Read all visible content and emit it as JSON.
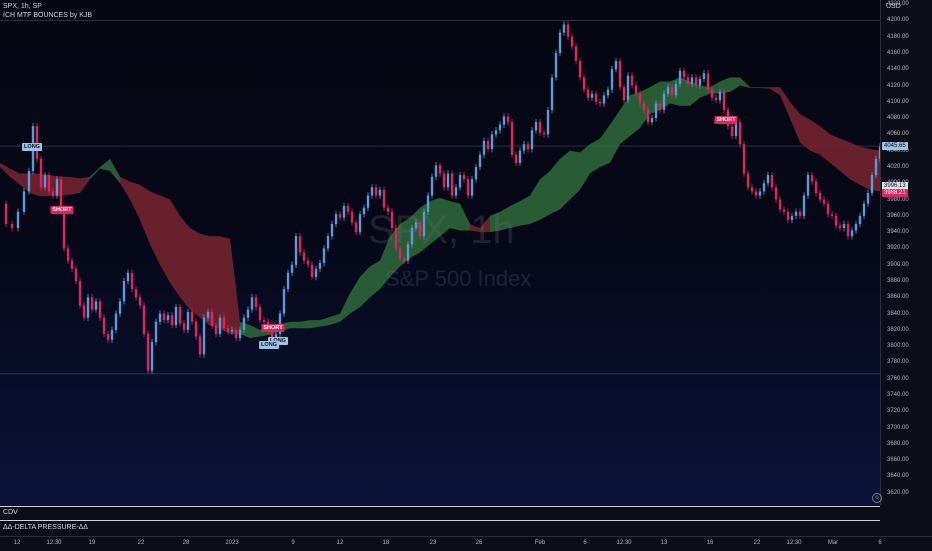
{
  "header": {
    "symbol": "SPX, 1h, SP",
    "indicator": "ICH MTF BOUNCES by KJB",
    "currency": "USD"
  },
  "watermark": {
    "ticker": "SPX, 1h",
    "name": "S&P 500 Index"
  },
  "panes": {
    "cdv": "CDV",
    "delta": "ΔΔ-DELTA PRESSURE-ΔΔ"
  },
  "colors": {
    "up_candle": "#5b9bd5",
    "down_candle": "#e0245e",
    "cloud_bull": "#2e6b3a",
    "cloud_bear": "#7a2530",
    "price_tag": "#5b9bd5",
    "bear_tag": "#e0245e"
  },
  "price_tags": [
    {
      "value": "4045.65",
      "price": 4045.65,
      "color": "#9cc3e6",
      "text": "#0b0e19"
    },
    {
      "value": "3996.13",
      "price": 3996.13,
      "color": "#dde4ee",
      "text": "#0b0e19"
    },
    {
      "value": "3988.21",
      "price": 3988.21,
      "color": "#e0245e",
      "text": "#ffffff"
    }
  ],
  "signals": [
    {
      "label": "LONG",
      "type": "long",
      "x": 32,
      "price": 4044
    },
    {
      "label": "SHORT",
      "type": "short",
      "x": 62,
      "price": 3967
    },
    {
      "label": "SHORT",
      "type": "short",
      "x": 273,
      "price": 3822
    },
    {
      "label": "LONG",
      "type": "long",
      "x": 278,
      "price": 3806
    },
    {
      "label": "LONG",
      "type": "long",
      "x": 269,
      "price": 3802
    },
    {
      "label": "SHORT",
      "type": "short",
      "x": 726,
      "price": 4078
    }
  ],
  "chart_data": {
    "type": "line",
    "ylim": [
      3605,
      4225
    ],
    "y_ticks": [
      4220,
      4200,
      4180,
      4160,
      4140,
      4120,
      4100,
      4080,
      4060,
      4040,
      4020,
      4000,
      3980,
      3960,
      3940,
      3920,
      3900,
      3880,
      3860,
      3840,
      3820,
      3800,
      3780,
      3760,
      3740,
      3720,
      3700,
      3680,
      3660,
      3640,
      3620
    ],
    "x_ticks": [
      {
        "label": "12",
        "x": 17
      },
      {
        "label": "12:30",
        "x": 54
      },
      {
        "label": "19",
        "x": 92
      },
      {
        "label": "22",
        "x": 141
      },
      {
        "label": "28",
        "x": 186
      },
      {
        "label": "2023",
        "x": 232
      },
      {
        "label": "9",
        "x": 293
      },
      {
        "label": "12",
        "x": 340
      },
      {
        "label": "18",
        "x": 386
      },
      {
        "label": "23",
        "x": 433
      },
      {
        "label": "26",
        "x": 479
      },
      {
        "label": "Feb",
        "x": 540
      },
      {
        "label": "6",
        "x": 585
      },
      {
        "label": "12:30",
        "x": 624
      },
      {
        "label": "13",
        "x": 664
      },
      {
        "label": "16",
        "x": 710
      },
      {
        "label": "22",
        "x": 757
      },
      {
        "label": "12:30",
        "x": 794
      },
      {
        "label": "Mar",
        "x": 833
      },
      {
        "label": "6",
        "x": 880
      }
    ],
    "high_line": 4200,
    "low_line": 3766,
    "last_price_line": 4045.65,
    "price_path": [
      [
        0,
        3975
      ],
      [
        6,
        3950
      ],
      [
        12,
        3945
      ],
      [
        18,
        3965
      ],
      [
        24,
        3990
      ],
      [
        29,
        4015
      ],
      [
        33,
        4070
      ],
      [
        37,
        4030
      ],
      [
        41,
        3995
      ],
      [
        45,
        4010
      ],
      [
        49,
        3990
      ],
      [
        53,
        3985
      ],
      [
        57,
        4005
      ],
      [
        61,
        3970
      ],
      [
        64,
        3920
      ],
      [
        68,
        3905
      ],
      [
        72,
        3895
      ],
      [
        76,
        3880
      ],
      [
        80,
        3850
      ],
      [
        84,
        3835
      ],
      [
        88,
        3860
      ],
      [
        92,
        3845
      ],
      [
        96,
        3855
      ],
      [
        100,
        3835
      ],
      [
        104,
        3815
      ],
      [
        108,
        3808
      ],
      [
        112,
        3820
      ],
      [
        116,
        3840
      ],
      [
        120,
        3855
      ],
      [
        124,
        3880
      ],
      [
        128,
        3890
      ],
      [
        132,
        3870
      ],
      [
        136,
        3860
      ],
      [
        140,
        3850
      ],
      [
        144,
        3815
      ],
      [
        148,
        3770
      ],
      [
        152,
        3805
      ],
      [
        156,
        3830
      ],
      [
        160,
        3840
      ],
      [
        164,
        3832
      ],
      [
        168,
        3838
      ],
      [
        172,
        3826
      ],
      [
        176,
        3848
      ],
      [
        180,
        3828
      ],
      [
        184,
        3820
      ],
      [
        188,
        3842
      ],
      [
        192,
        3830
      ],
      [
        196,
        3812
      ],
      [
        200,
        3790
      ],
      [
        204,
        3835
      ],
      [
        208,
        3842
      ],
      [
        212,
        3825
      ],
      [
        216,
        3815
      ],
      [
        220,
        3835
      ],
      [
        224,
        3822
      ],
      [
        228,
        3818
      ],
      [
        232,
        3820
      ],
      [
        236,
        3810
      ],
      [
        240,
        3820
      ],
      [
        244,
        3835
      ],
      [
        248,
        3845
      ],
      [
        252,
        3860
      ],
      [
        256,
        3848
      ],
      [
        260,
        3832
      ],
      [
        264,
        3830
      ],
      [
        268,
        3818
      ],
      [
        272,
        3805
      ],
      [
        276,
        3815
      ],
      [
        280,
        3840
      ],
      [
        284,
        3870
      ],
      [
        288,
        3890
      ],
      [
        292,
        3900
      ],
      [
        296,
        3935
      ],
      [
        300,
        3915
      ],
      [
        304,
        3905
      ],
      [
        308,
        3900
      ],
      [
        312,
        3885
      ],
      [
        316,
        3895
      ],
      [
        320,
        3902
      ],
      [
        324,
        3920
      ],
      [
        328,
        3935
      ],
      [
        332,
        3950
      ],
      [
        336,
        3962
      ],
      [
        340,
        3958
      ],
      [
        344,
        3972
      ],
      [
        348,
        3965
      ],
      [
        352,
        3952
      ],
      [
        356,
        3940
      ],
      [
        360,
        3962
      ],
      [
        364,
        3970
      ],
      [
        368,
        3985
      ],
      [
        372,
        3995
      ],
      [
        376,
        3985
      ],
      [
        380,
        3992
      ],
      [
        384,
        3970
      ],
      [
        388,
        3965
      ],
      [
        392,
        3945
      ],
      [
        396,
        3920
      ],
      [
        400,
        3908
      ],
      [
        404,
        3905
      ],
      [
        408,
        3925
      ],
      [
        412,
        3945
      ],
      [
        416,
        3952
      ],
      [
        420,
        3935
      ],
      [
        424,
        3965
      ],
      [
        428,
        3985
      ],
      [
        432,
        4008
      ],
      [
        436,
        4022
      ],
      [
        440,
        4012
      ],
      [
        444,
        3995
      ],
      [
        448,
        4012
      ],
      [
        452,
        3985
      ],
      [
        456,
        3995
      ],
      [
        460,
        4010
      ],
      [
        464,
        4005
      ],
      [
        468,
        3985
      ],
      [
        472,
        4005
      ],
      [
        476,
        4020
      ],
      [
        480,
        4035
      ],
      [
        484,
        4052
      ],
      [
        488,
        4042
      ],
      [
        492,
        4060
      ],
      [
        496,
        4065
      ],
      [
        500,
        4072
      ],
      [
        504,
        4082
      ],
      [
        508,
        4075
      ],
      [
        512,
        4035
      ],
      [
        516,
        4025
      ],
      [
        520,
        4040
      ],
      [
        524,
        4048
      ],
      [
        528,
        4042
      ],
      [
        532,
        4065
      ],
      [
        536,
        4075
      ],
      [
        540,
        4062
      ],
      [
        544,
        4060
      ],
      [
        548,
        4090
      ],
      [
        552,
        4130
      ],
      [
        556,
        4160
      ],
      [
        560,
        4185
      ],
      [
        564,
        4195
      ],
      [
        568,
        4180
      ],
      [
        572,
        4168
      ],
      [
        576,
        4150
      ],
      [
        580,
        4130
      ],
      [
        584,
        4115
      ],
      [
        588,
        4105
      ],
      [
        592,
        4110
      ],
      [
        596,
        4100
      ],
      [
        600,
        4098
      ],
      [
        604,
        4108
      ],
      [
        608,
        4115
      ],
      [
        612,
        4140
      ],
      [
        616,
        4150
      ],
      [
        620,
        4118
      ],
      [
        624,
        4102
      ],
      [
        628,
        4132
      ],
      [
        632,
        4120
      ],
      [
        636,
        4110
      ],
      [
        640,
        4098
      ],
      [
        644,
        4090
      ],
      [
        648,
        4075
      ],
      [
        652,
        4080
      ],
      [
        656,
        4098
      ],
      [
        660,
        4090
      ],
      [
        664,
        4110
      ],
      [
        668,
        4118
      ],
      [
        672,
        4108
      ],
      [
        676,
        4122
      ],
      [
        680,
        4138
      ],
      [
        684,
        4130
      ],
      [
        688,
        4122
      ],
      [
        692,
        4130
      ],
      [
        696,
        4120
      ],
      [
        700,
        4128
      ],
      [
        704,
        4135
      ],
      [
        708,
        4115
      ],
      [
        712,
        4105
      ],
      [
        716,
        4102
      ],
      [
        720,
        4112
      ],
      [
        724,
        4090
      ],
      [
        728,
        4070
      ],
      [
        732,
        4058
      ],
      [
        736,
        4075
      ],
      [
        740,
        4048
      ],
      [
        744,
        4012
      ],
      [
        748,
        3995
      ],
      [
        752,
        3990
      ],
      [
        756,
        3985
      ],
      [
        760,
        3990
      ],
      [
        764,
        4000
      ],
      [
        768,
        4010
      ],
      [
        772,
        3995
      ],
      [
        776,
        3980
      ],
      [
        780,
        3968
      ],
      [
        784,
        3965
      ],
      [
        788,
        3955
      ],
      [
        792,
        3960
      ],
      [
        796,
        3965
      ],
      [
        800,
        3960
      ],
      [
        804,
        3985
      ],
      [
        808,
        4010
      ],
      [
        812,
        4002
      ],
      [
        816,
        3988
      ],
      [
        820,
        3980
      ],
      [
        824,
        3975
      ],
      [
        828,
        3962
      ],
      [
        832,
        3960
      ],
      [
        836,
        3948
      ],
      [
        840,
        3945
      ],
      [
        844,
        3950
      ],
      [
        848,
        3935
      ],
      [
        852,
        3942
      ],
      [
        856,
        3950
      ],
      [
        860,
        3960
      ],
      [
        864,
        3975
      ],
      [
        868,
        3988
      ],
      [
        872,
        4010
      ],
      [
        876,
        4030
      ],
      [
        880,
        4045
      ]
    ],
    "cloud": [
      [
        0,
        4025,
        4020
      ],
      [
        10,
        4018,
        4008
      ],
      [
        20,
        4012,
        3998
      ],
      [
        30,
        4012,
        3988
      ],
      [
        40,
        4012,
        3984
      ],
      [
        50,
        4010,
        3984
      ],
      [
        60,
        4008,
        3984
      ],
      [
        70,
        4008,
        3986
      ],
      [
        80,
        4006,
        3988
      ],
      [
        90,
        4008,
        4005
      ],
      [
        100,
        4020,
        4018
      ],
      [
        110,
        4030,
        4015
      ],
      [
        120,
        4008,
        4000
      ],
      [
        130,
        4002,
        3980
      ],
      [
        140,
        3998,
        3955
      ],
      [
        150,
        3990,
        3925
      ],
      [
        160,
        3985,
        3900
      ],
      [
        170,
        3980,
        3878
      ],
      [
        180,
        3960,
        3860
      ],
      [
        190,
        3945,
        3845
      ],
      [
        200,
        3938,
        3835
      ],
      [
        210,
        3935,
        3825
      ],
      [
        220,
        3935,
        3822
      ],
      [
        230,
        3932,
        3815
      ],
      [
        240,
        3830,
        3815
      ],
      [
        250,
        3826,
        3810
      ],
      [
        260,
        3820,
        3812
      ],
      [
        270,
        3824,
        3814
      ],
      [
        280,
        3827,
        3818
      ],
      [
        290,
        3830,
        3822
      ],
      [
        300,
        3830,
        3822
      ],
      [
        310,
        3832,
        3822
      ],
      [
        320,
        3832,
        3824
      ],
      [
        330,
        3836,
        3826
      ],
      [
        340,
        3840,
        3830
      ],
      [
        350,
        3865,
        3840
      ],
      [
        360,
        3885,
        3848
      ],
      [
        370,
        3898,
        3860
      ],
      [
        380,
        3905,
        3870
      ],
      [
        390,
        3935,
        3885
      ],
      [
        400,
        3950,
        3898
      ],
      [
        410,
        3958,
        3908
      ],
      [
        420,
        3970,
        3915
      ],
      [
        430,
        3978,
        3925
      ],
      [
        440,
        3982,
        3935
      ],
      [
        450,
        3978,
        3945
      ],
      [
        460,
        3975,
        3942
      ],
      [
        470,
        3950,
        3942
      ],
      [
        480,
        3945,
        3940
      ],
      [
        490,
        3960,
        3940
      ],
      [
        500,
        3965,
        3942
      ],
      [
        510,
        3972,
        3945
      ],
      [
        520,
        3978,
        3948
      ],
      [
        530,
        3985,
        3950
      ],
      [
        540,
        4005,
        3955
      ],
      [
        550,
        4015,
        3962
      ],
      [
        560,
        4030,
        3968
      ],
      [
        570,
        4040,
        3980
      ],
      [
        580,
        4038,
        3992
      ],
      [
        590,
        4048,
        4012
      ],
      [
        600,
        4055,
        4020
      ],
      [
        610,
        4072,
        4025
      ],
      [
        620,
        4090,
        4048
      ],
      [
        630,
        4108,
        4058
      ],
      [
        640,
        4112,
        4068
      ],
      [
        650,
        4118,
        4085
      ],
      [
        660,
        4125,
        4090
      ],
      [
        670,
        4125,
        4098
      ],
      [
        680,
        4130,
        4095
      ],
      [
        690,
        4125,
        4095
      ],
      [
        700,
        4120,
        4105
      ],
      [
        710,
        4118,
        4110
      ],
      [
        720,
        4125,
        4110
      ],
      [
        730,
        4130,
        4112
      ],
      [
        740,
        4130,
        4120
      ],
      [
        750,
        4118,
        4117
      ],
      [
        760,
        4118,
        4117
      ],
      [
        770,
        4118,
        4116
      ],
      [
        780,
        4118,
        4108
      ],
      [
        790,
        4100,
        4080
      ],
      [
        800,
        4085,
        4050
      ],
      [
        810,
        4078,
        4040
      ],
      [
        820,
        4070,
        4035
      ],
      [
        830,
        4060,
        4025
      ],
      [
        840,
        4055,
        4015
      ],
      [
        850,
        4050,
        4005
      ],
      [
        860,
        4045,
        3998
      ],
      [
        870,
        4042,
        3992
      ],
      [
        880,
        4040,
        3990
      ]
    ]
  }
}
